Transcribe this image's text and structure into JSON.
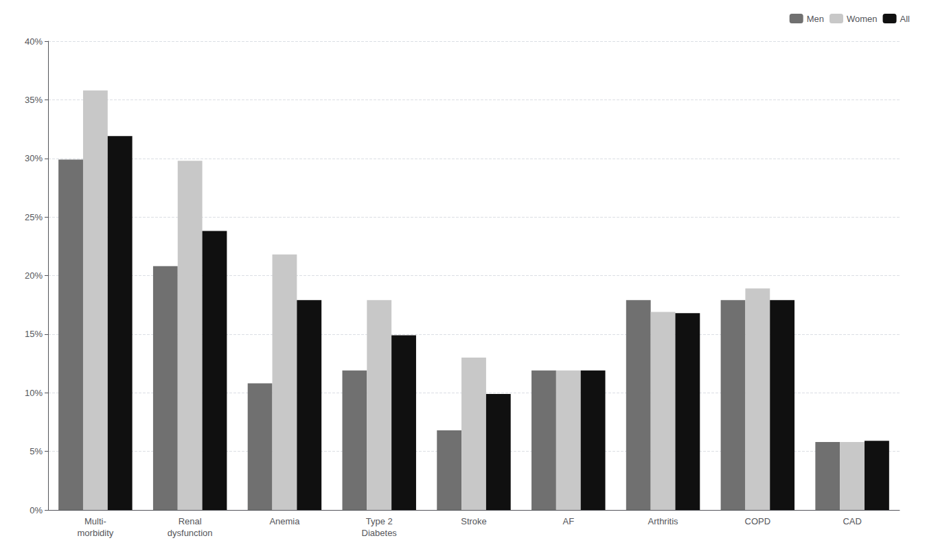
{
  "chart_data": {
    "type": "bar",
    "categories": [
      "Multi-\nmorbidity",
      "Renal\ndysfunction",
      "Anemia",
      "Type 2\nDiabetes",
      "Stroke",
      "AF",
      "Arthritis",
      "COPD",
      "CAD"
    ],
    "series": [
      {
        "name": "Men",
        "color": "#707070",
        "values": [
          29.9,
          20.8,
          10.8,
          11.9,
          6.8,
          11.9,
          17.9,
          17.9,
          5.8
        ]
      },
      {
        "name": "Women",
        "color": "#c8c8c8",
        "values": [
          35.8,
          29.8,
          21.8,
          17.9,
          13.0,
          11.9,
          16.9,
          18.9,
          5.8
        ]
      },
      {
        "name": "All",
        "color": "#101010",
        "values": [
          31.9,
          23.8,
          17.9,
          14.9,
          9.9,
          11.9,
          16.8,
          17.9,
          5.9
        ]
      }
    ],
    "ylim": [
      0,
      40
    ],
    "yticks": [
      {
        "value": 0,
        "label": "0%"
      },
      {
        "value": 5,
        "label": "5%"
      },
      {
        "value": 10,
        "label": "10%"
      },
      {
        "value": 15,
        "label": "15%"
      },
      {
        "value": 20,
        "label": "20%"
      },
      {
        "value": 25,
        "label": "25%"
      },
      {
        "value": 30,
        "label": "30%"
      },
      {
        "value": 35,
        "label": "35%"
      },
      {
        "value": 40,
        "label": "40%"
      }
    ],
    "grid": true,
    "legend": "upper right"
  }
}
